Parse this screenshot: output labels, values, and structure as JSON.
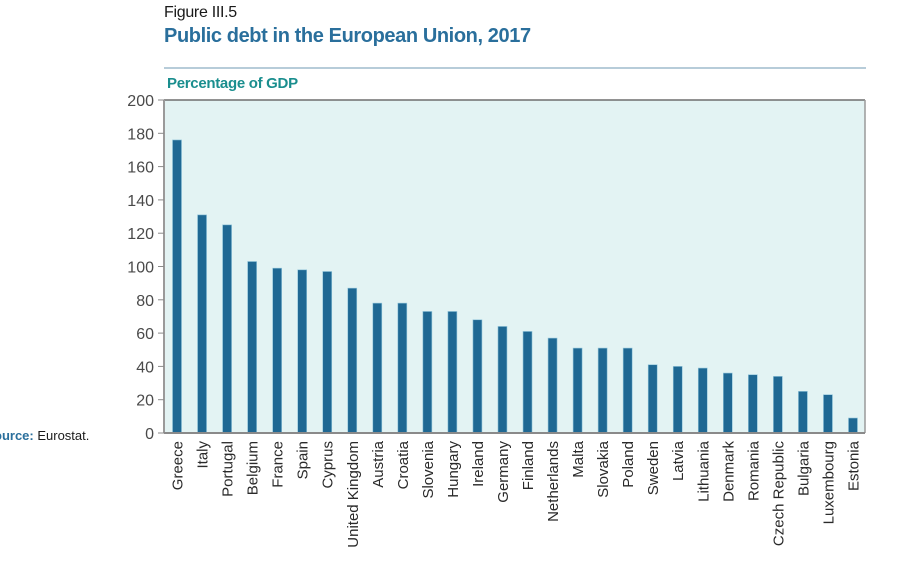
{
  "figure": {
    "label": "Figure III.5",
    "title": "Public debt in the European Union, 2017",
    "unit_label": "Percentage of GDP",
    "source_key": "ource:",
    "source_value": " Eurostat."
  },
  "colors": {
    "bar": "#1f6893",
    "plot_bg": "#e3f3f3",
    "title": "#2a6f9c",
    "unit_label": "#1a8e8e",
    "axis": "#8a8a8a"
  },
  "chart_data": {
    "type": "bar",
    "title": "Public debt in the European Union, 2017",
    "subtitle": "Percentage of GDP",
    "xlabel": "",
    "ylabel": "Percentage of GDP",
    "ylim": [
      0,
      200
    ],
    "yticks": [
      0,
      20,
      40,
      60,
      80,
      100,
      120,
      140,
      160,
      180,
      200
    ],
    "grid": false,
    "legend": "none",
    "categories": [
      "Greece",
      "Italy",
      "Portugal",
      "Belgium",
      "France",
      "Spain",
      "Cyprus",
      "United Kingdom",
      "Austria",
      "Croatia",
      "Slovenia",
      "Hungary",
      "Ireland",
      "Germany",
      "Finland",
      "Netherlands",
      "Malta",
      "Slovakia",
      "Poland",
      "Sweden",
      "Latvia",
      "Lithuania",
      "Denmark",
      "Romania",
      "Czech Republic",
      "Bulgaria",
      "Luxembourg",
      "Estonia"
    ],
    "values": [
      176,
      131,
      125,
      103,
      99,
      98,
      97,
      87,
      78,
      78,
      73,
      73,
      68,
      64,
      61,
      57,
      51,
      51,
      51,
      41,
      40,
      39,
      36,
      35,
      34,
      25,
      23,
      9
    ]
  }
}
